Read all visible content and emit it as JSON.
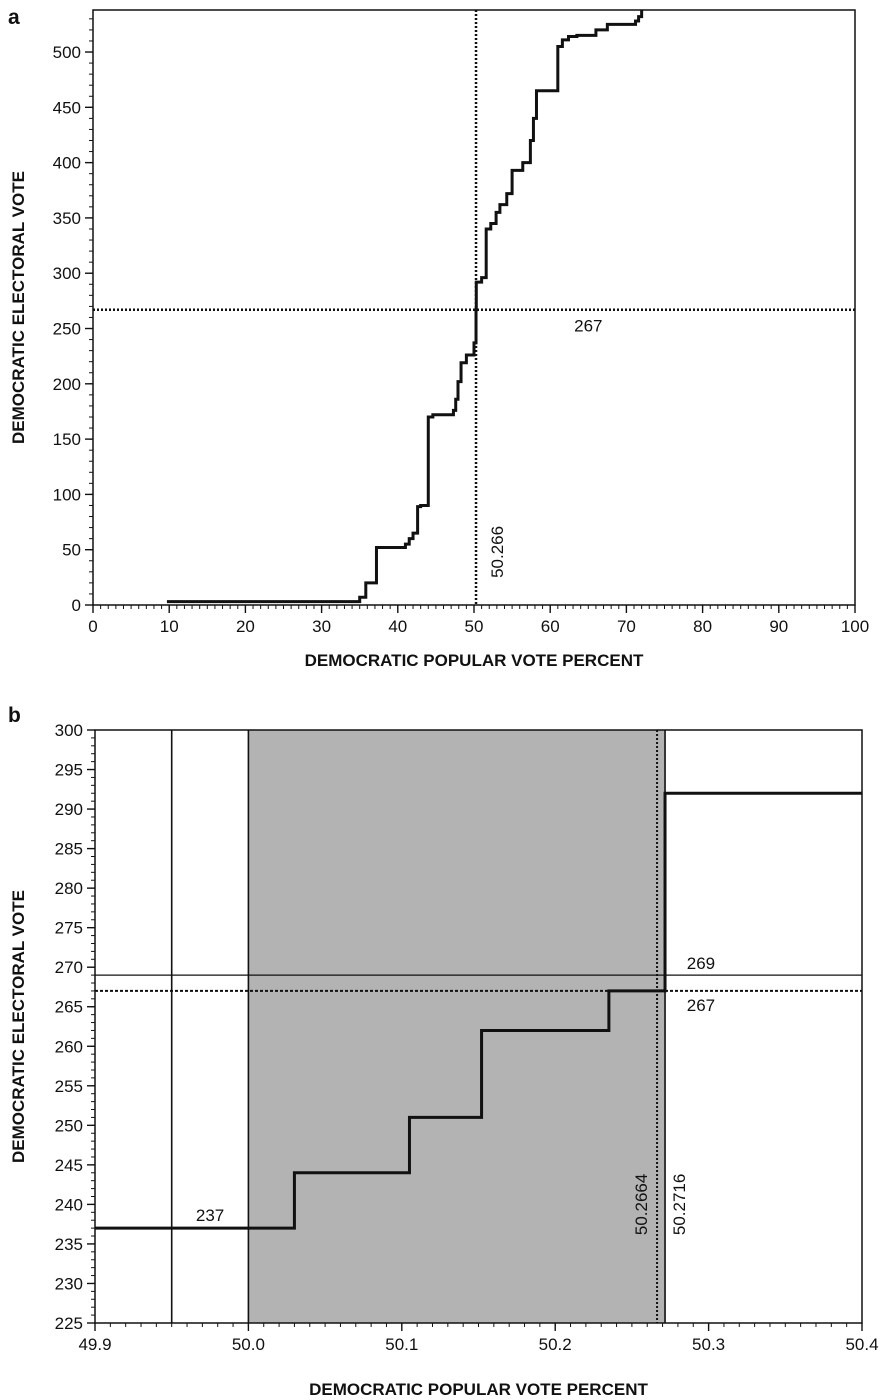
{
  "chart_data": [
    {
      "type": "line",
      "panel_label": "a",
      "xlabel": "DEMOCRATIC POPULAR VOTE PERCENT",
      "ylabel": "DEMOCRATIC ELECTORAL VOTE",
      "xlim": [
        0,
        100
      ],
      "ylim": [
        0,
        538
      ],
      "x_ticks": [
        0,
        10,
        20,
        30,
        40,
        50,
        60,
        70,
        80,
        90,
        100
      ],
      "y_ticks": [
        0,
        50,
        100,
        150,
        200,
        250,
        300,
        350,
        400,
        450,
        500
      ],
      "grid": false,
      "series": [
        {
          "step": true,
          "x": [
            9.7,
            34.2,
            35.0,
            35.8,
            37.2,
            41.0,
            41.5,
            42.0,
            42.6,
            43.0,
            44.0,
            44.6,
            47.3,
            47.6,
            47.9,
            48.3,
            49.0,
            50.0,
            50.266,
            50.3,
            51.0,
            51.6,
            52.2,
            52.9,
            53.4,
            54.3,
            55.0,
            56.4,
            57.4,
            57.8,
            58.2,
            61.0,
            61.6,
            62.4,
            63.5,
            66.0,
            67.5,
            70.8,
            71.2,
            71.6,
            72.0
          ],
          "y": [
            3,
            3,
            7,
            20,
            52,
            55,
            60,
            65,
            89,
            90,
            170,
            172,
            176,
            186,
            202,
            219,
            226,
            237,
            267,
            292,
            296,
            340,
            345,
            355,
            362,
            372,
            393,
            400,
            420,
            440,
            465,
            505,
            511,
            514,
            515,
            520,
            525,
            525,
            528,
            532,
            538
          ]
        }
      ],
      "annotations": [
        {
          "text": "267",
          "y": 267,
          "x": 50.266,
          "style": "dotted-horizontal"
        },
        {
          "text": "50.266",
          "x": 50.266,
          "style": "dotted-vertical"
        }
      ]
    },
    {
      "type": "line",
      "panel_label": "b",
      "xlabel": "DEMOCRATIC POPULAR VOTE PERCENT",
      "ylabel": "DEMOCRATIC ELECTORAL VOTE",
      "xlim": [
        49.9,
        50.4
      ],
      "ylim": [
        225,
        300
      ],
      "x_ticks": [
        "49.9",
        "50.0",
        "50.1",
        "50.2",
        "50.3",
        "50.4"
      ],
      "y_ticks": [
        225,
        230,
        235,
        240,
        245,
        250,
        255,
        260,
        265,
        270,
        275,
        280,
        285,
        290,
        295,
        300
      ],
      "grid": false,
      "shaded_x_range": [
        50.0,
        50.2716
      ],
      "series": [
        {
          "step": true,
          "x": [
            49.9,
            50.03,
            50.105,
            50.152,
            50.235,
            50.2716,
            50.4
          ],
          "y": [
            237,
            244,
            251,
            262,
            267,
            292,
            292
          ]
        }
      ],
      "reference_lines": {
        "vertical_solid": [
          49.95,
          50.0,
          50.2716
        ],
        "vertical_dotted": [
          50.2664
        ],
        "horizontal_solid": [
          269
        ],
        "horizontal_dotted": [
          267
        ]
      },
      "annotations": [
        {
          "text": "237",
          "x": 49.975,
          "y": 237
        },
        {
          "text": "269",
          "x": 50.295,
          "y": 269
        },
        {
          "text": "267",
          "x": 50.295,
          "y": 267
        },
        {
          "text": "50.2664",
          "x": 50.2664,
          "style": "vertical-text"
        },
        {
          "text": "50.2716",
          "x": 50.2716,
          "style": "vertical-text"
        }
      ]
    }
  ]
}
